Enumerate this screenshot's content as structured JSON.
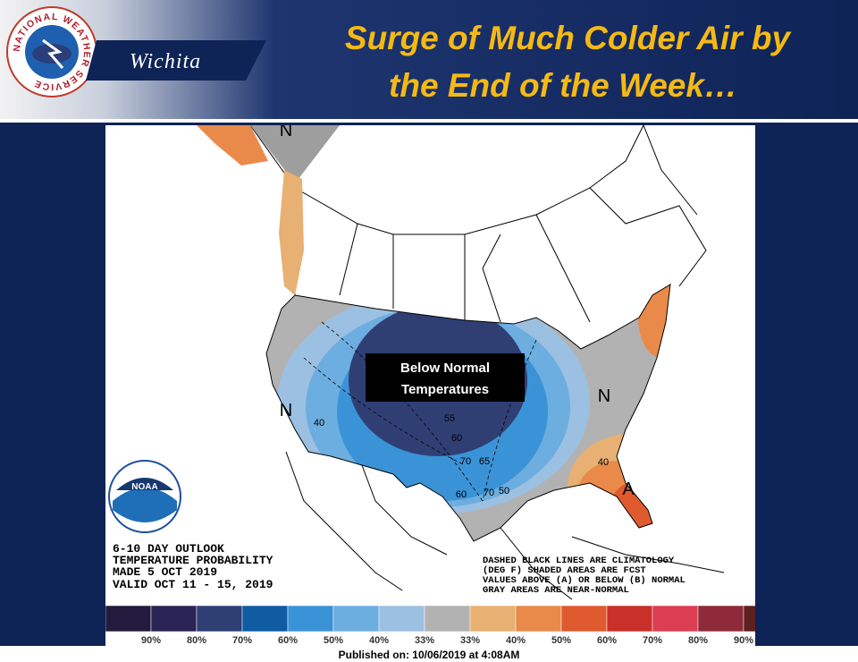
{
  "header": {
    "logo_text": "NATIONAL WEATHER SERVICE",
    "office": "Wichita",
    "title_lines": [
      "Surge of Much Colder Air by",
      "the End of the Week…"
    ]
  },
  "map": {
    "region_labels": [
      "N",
      "N",
      "N",
      "A"
    ],
    "contour_labels": [
      "40",
      "40",
      "50",
      "60",
      "55",
      "60",
      "70",
      "65",
      "70"
    ],
    "callout_lines": [
      "Below Normal",
      "Temperatures"
    ],
    "agency_logo": "NOAA",
    "info_lines": [
      "6-10 DAY OUTLOOK",
      "TEMPERATURE PROBABILITY",
      "MADE  5 OCT 2019",
      "VALID  OCT 11 - 15, 2019"
    ],
    "note_lines": [
      "DASHED BLACK LINES ARE CLIMATOLOGY",
      "(DEG F) SHADED AREAS ARE FCST",
      "VALUES ABOVE (A) OR BELOW (B) NORMAL",
      "GRAY AREAS ARE NEAR-NORMAL"
    ],
    "legend": {
      "colors": [
        "#231a3d",
        "#2b2456",
        "#2f3f74",
        "#0f5ca3",
        "#3b93d7",
        "#6daee0",
        "#9cc0e2",
        "#b2b2b2",
        "#e8b072",
        "#e98a4b",
        "#e05a30",
        "#c93029",
        "#dd3d53",
        "#8f2a3a",
        "#5f2020"
      ],
      "labels": [
        "90%",
        "80%",
        "70%",
        "60%",
        "50%",
        "40%",
        "33%",
        "33%",
        "40%",
        "50%",
        "60%",
        "70%",
        "80%",
        "90%"
      ]
    }
  },
  "footer": "Published on: 10/06/2019 at 4:08AM"
}
